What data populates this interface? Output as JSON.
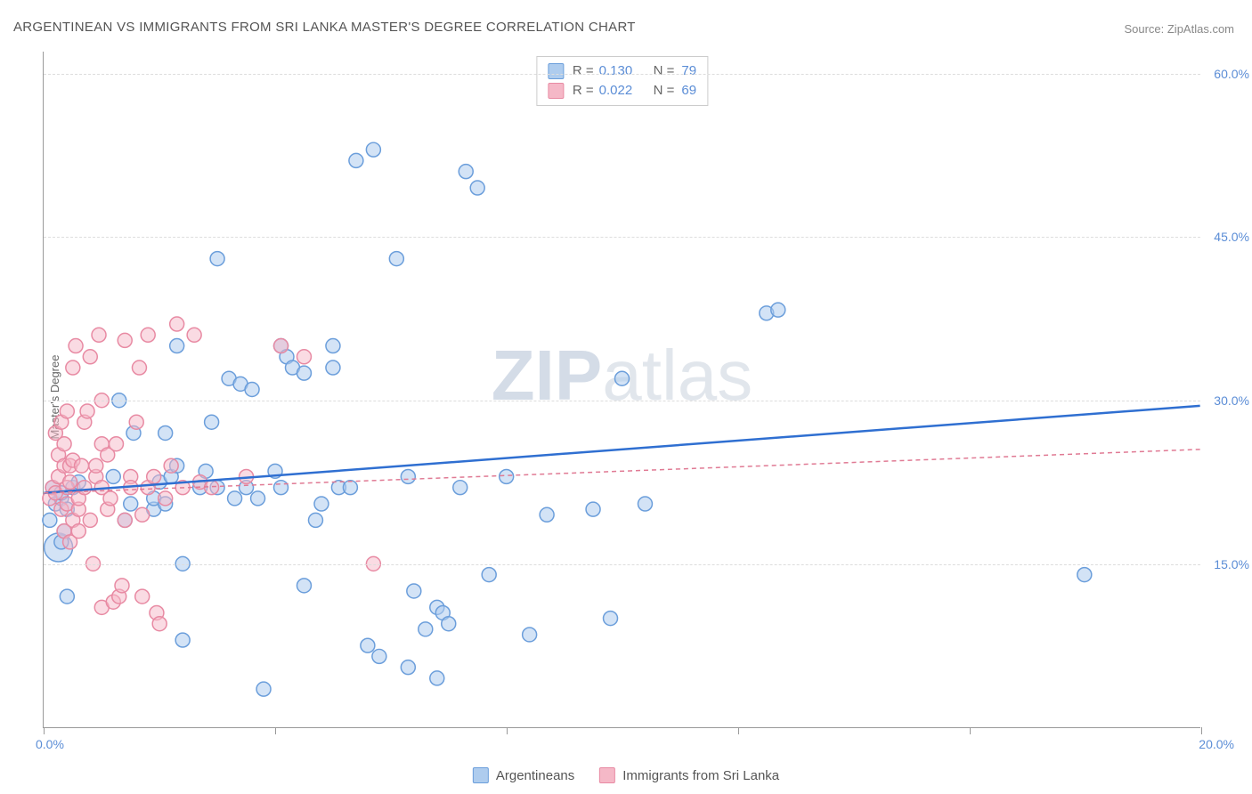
{
  "title": "ARGENTINEAN VS IMMIGRANTS FROM SRI LANKA MASTER'S DEGREE CORRELATION CHART",
  "source": "Source: ZipAtlas.com",
  "watermark": {
    "bold": "ZIP",
    "rest": "atlas"
  },
  "y_axis_label": "Master's Degree",
  "x_axis": {
    "min": 0,
    "max": 20,
    "ticks_at": [
      0,
      4,
      8,
      12,
      16,
      20
    ],
    "labels": {
      "left": "0.0%",
      "right": "20.0%"
    }
  },
  "y_axis": {
    "min": 0,
    "max": 62,
    "ticks": [
      {
        "v": 15,
        "label": "15.0%"
      },
      {
        "v": 30,
        "label": "30.0%"
      },
      {
        "v": 45,
        "label": "45.0%"
      },
      {
        "v": 60,
        "label": "60.0%"
      }
    ]
  },
  "series": [
    {
      "key": "argentineans",
      "name": "Argentineans",
      "fill": "#aeccee",
      "stroke": "#6b9edb",
      "fill_opacity": 0.55,
      "line_color": "#2f6fd1",
      "line_width": 2.5,
      "line_dash": "",
      "R": "0.130",
      "N": "79",
      "reg_y_at_xmin": 21.5,
      "reg_y_at_xmax": 29.5,
      "points": [
        [
          0.2,
          20.5
        ],
        [
          0.3,
          21
        ],
        [
          0.15,
          22
        ],
        [
          0.25,
          16.5,
          16
        ],
        [
          0.3,
          17
        ],
        [
          0.1,
          19
        ],
        [
          0.4,
          20
        ],
        [
          0.3,
          21.5
        ],
        [
          0.5,
          22
        ],
        [
          0.6,
          22.5
        ],
        [
          0.35,
          18
        ],
        [
          0.4,
          12
        ],
        [
          1.2,
          23
        ],
        [
          1.3,
          30
        ],
        [
          1.4,
          19
        ],
        [
          1.5,
          20.5
        ],
        [
          1.55,
          27
        ],
        [
          1.9,
          20
        ],
        [
          1.9,
          21
        ],
        [
          2.0,
          22.5
        ],
        [
          2.2,
          23
        ],
        [
          2.3,
          24
        ],
        [
          2.1,
          20.5
        ],
        [
          2.1,
          27
        ],
        [
          2.3,
          35
        ],
        [
          2.4,
          8
        ],
        [
          2.4,
          15
        ],
        [
          2.7,
          22
        ],
        [
          2.8,
          23.5
        ],
        [
          2.9,
          28
        ],
        [
          3.0,
          43
        ],
        [
          3.0,
          22
        ],
        [
          3.2,
          32
        ],
        [
          3.4,
          31.5
        ],
        [
          3.5,
          22
        ],
        [
          3.7,
          21
        ],
        [
          3.3,
          21
        ],
        [
          3.6,
          31
        ],
        [
          3.8,
          3.5
        ],
        [
          4.0,
          23.5
        ],
        [
          4.1,
          35
        ],
        [
          4.1,
          22
        ],
        [
          4.2,
          34
        ],
        [
          4.3,
          33
        ],
        [
          4.5,
          32.5
        ],
        [
          4.5,
          13
        ],
        [
          4.7,
          19
        ],
        [
          4.8,
          20.5
        ],
        [
          5.0,
          35
        ],
        [
          5.0,
          33
        ],
        [
          5.1,
          22
        ],
        [
          5.3,
          22
        ],
        [
          5.6,
          7.5
        ],
        [
          5.8,
          6.5
        ],
        [
          5.4,
          52
        ],
        [
          5.7,
          53
        ],
        [
          6.1,
          43
        ],
        [
          6.3,
          23
        ],
        [
          6.3,
          5.5
        ],
        [
          6.4,
          12.5
        ],
        [
          6.6,
          9
        ],
        [
          6.8,
          11
        ],
        [
          6.8,
          4.5
        ],
        [
          6.9,
          10.5
        ],
        [
          7.0,
          9.5
        ],
        [
          7.2,
          22
        ],
        [
          7.3,
          51
        ],
        [
          7.5,
          49.5
        ],
        [
          7.7,
          14
        ],
        [
          8.0,
          23
        ],
        [
          8.4,
          8.5
        ],
        [
          8.7,
          19.5
        ],
        [
          9.5,
          20
        ],
        [
          9.8,
          10
        ],
        [
          10.0,
          32
        ],
        [
          10.4,
          20.5
        ],
        [
          12.5,
          38
        ],
        [
          12.7,
          38.3
        ],
        [
          18.0,
          14
        ]
      ]
    },
    {
      "key": "srilanka",
      "name": "Immigrants from Sri Lanka",
      "fill": "#f5b8c7",
      "stroke": "#e88aa3",
      "fill_opacity": 0.5,
      "line_color": "#e07a94",
      "line_width": 1.5,
      "line_dash": "5,4",
      "R": "0.022",
      "N": "69",
      "reg_y_at_xmin": 21.5,
      "reg_y_at_xmax": 25.5,
      "points": [
        [
          0.1,
          21
        ],
        [
          0.15,
          22
        ],
        [
          0.2,
          21.5
        ],
        [
          0.2,
          27
        ],
        [
          0.25,
          23
        ],
        [
          0.25,
          25
        ],
        [
          0.3,
          20
        ],
        [
          0.3,
          28
        ],
        [
          0.35,
          26
        ],
        [
          0.35,
          18
        ],
        [
          0.35,
          24
        ],
        [
          0.4,
          22
        ],
        [
          0.4,
          29
        ],
        [
          0.4,
          20.5
        ],
        [
          0.45,
          17
        ],
        [
          0.45,
          22.5
        ],
        [
          0.45,
          24
        ],
        [
          0.5,
          19
        ],
        [
          0.5,
          24.5
        ],
        [
          0.5,
          33
        ],
        [
          0.55,
          35
        ],
        [
          0.6,
          20
        ],
        [
          0.6,
          21
        ],
        [
          0.6,
          18
        ],
        [
          0.65,
          24
        ],
        [
          0.7,
          22
        ],
        [
          0.7,
          28
        ],
        [
          0.75,
          29
        ],
        [
          0.8,
          34
        ],
        [
          0.8,
          19
        ],
        [
          0.85,
          15
        ],
        [
          0.9,
          23
        ],
        [
          0.9,
          24
        ],
        [
          0.95,
          36
        ],
        [
          1.0,
          30
        ],
        [
          1.0,
          22
        ],
        [
          1.0,
          26
        ],
        [
          1.0,
          11
        ],
        [
          1.1,
          25
        ],
        [
          1.1,
          20
        ],
        [
          1.15,
          21
        ],
        [
          1.2,
          11.5
        ],
        [
          1.25,
          26
        ],
        [
          1.3,
          12
        ],
        [
          1.35,
          13
        ],
        [
          1.4,
          19
        ],
        [
          1.4,
          35.5
        ],
        [
          1.5,
          23
        ],
        [
          1.5,
          22
        ],
        [
          1.6,
          28
        ],
        [
          1.65,
          33
        ],
        [
          1.7,
          12
        ],
        [
          1.7,
          19.5
        ],
        [
          1.8,
          22
        ],
        [
          1.8,
          36
        ],
        [
          1.9,
          23
        ],
        [
          1.95,
          10.5
        ],
        [
          2.0,
          9.5
        ],
        [
          2.1,
          21
        ],
        [
          2.2,
          24
        ],
        [
          2.3,
          37
        ],
        [
          2.4,
          22
        ],
        [
          2.6,
          36
        ],
        [
          2.7,
          22.5
        ],
        [
          2.9,
          22
        ],
        [
          3.5,
          23
        ],
        [
          4.1,
          35
        ],
        [
          4.5,
          34
        ],
        [
          5.7,
          15
        ]
      ]
    }
  ],
  "legend_bottom": [
    {
      "series": "argentineans"
    },
    {
      "series": "srilanka"
    }
  ],
  "marker_radius": 8,
  "marker_stroke_width": 1.5
}
